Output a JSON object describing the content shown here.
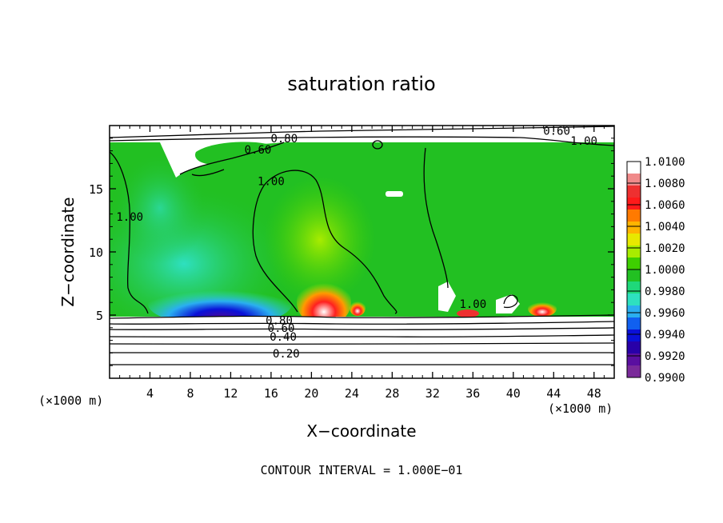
{
  "chart_data": {
    "type": "heatmap",
    "title": "saturation ratio",
    "xlabel": "X−coordinate",
    "ylabel": "Z−coordinate",
    "x_unit": "(×1000 m)",
    "z_unit": "(×1000 m)",
    "xlim": [
      0,
      50
    ],
    "zlim": [
      0,
      20
    ],
    "x_ticks": [
      4,
      8,
      12,
      16,
      20,
      24,
      28,
      32,
      36,
      40,
      44,
      48
    ],
    "z_ticks": [
      5,
      10,
      15
    ],
    "footer": "CONTOUR INTERVAL = 1.000E−01",
    "colorbar": {
      "levels": [
        "1.0100",
        "1.0080",
        "1.0060",
        "1.0040",
        "1.0020",
        "1.0000",
        "0.9980",
        "0.9960",
        "0.9940",
        "0.9920",
        "0.9900"
      ],
      "colors": [
        "#ffffff",
        "#f08a8a",
        "#ee3030",
        "#ff1a1a",
        "#ff7a00",
        "#ffb400",
        "#e8e800",
        "#a8ec00",
        "#3ecf00",
        "#22c022",
        "#1fd87a",
        "#2ee0c0",
        "#2aaff0",
        "#1060f0",
        "#0a10d8",
        "#2800a8",
        "#5a0fa0",
        "#7a2a9a"
      ]
    },
    "contour_labels": [
      {
        "text": "0.80",
        "x": 17.3,
        "z": 19.0
      },
      {
        "text": "0.60",
        "x": 44.3,
        "z": 19.6
      },
      {
        "text": "1.00",
        "x": 47.0,
        "z": 18.8
      },
      {
        "text": "0.60",
        "x": 14.7,
        "z": 18.1
      },
      {
        "text": "1.00",
        "x": 16.0,
        "z": 15.6
      },
      {
        "text": "1.00",
        "x": 2.0,
        "z": 12.8
      },
      {
        "text": "1.00",
        "x": 36.0,
        "z": 5.9
      },
      {
        "text": "0.80",
        "x": 16.8,
        "z": 4.6
      },
      {
        "text": "0.60",
        "x": 17.0,
        "z": 4.0
      },
      {
        "text": "0.40",
        "x": 17.2,
        "z": 3.3
      },
      {
        "text": "0.20",
        "x": 17.5,
        "z": 1.95
      }
    ]
  }
}
